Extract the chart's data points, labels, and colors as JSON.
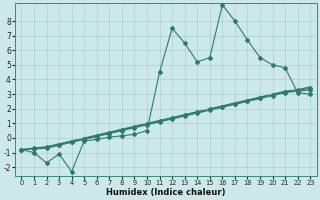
{
  "xlabel": "Humidex (Indice chaleur)",
  "bg_color": "#cce8e8",
  "line_color": "#2d7a6e",
  "grid_color": "#aacfcf",
  "xlim": [
    -0.5,
    23.5
  ],
  "ylim": [
    -2.6,
    9.2
  ],
  "xticks": [
    0,
    1,
    2,
    3,
    4,
    5,
    6,
    7,
    8,
    9,
    10,
    11,
    12,
    13,
    14,
    15,
    16,
    17,
    18,
    19,
    20,
    21,
    22,
    23
  ],
  "yticks": [
    -2,
    -1,
    0,
    1,
    2,
    3,
    4,
    5,
    6,
    7,
    8
  ],
  "series1_x": [
    0,
    1,
    2,
    3,
    4,
    5,
    6,
    7,
    8,
    9,
    10,
    11,
    12,
    13,
    14,
    15,
    16,
    17,
    18,
    19,
    20,
    21,
    22,
    23
  ],
  "series1_y": [
    -0.8,
    -1.0,
    -1.7,
    -1.1,
    -2.3,
    -0.2,
    -0.1,
    0.05,
    0.15,
    0.25,
    0.5,
    4.5,
    7.5,
    6.5,
    5.2,
    5.5,
    9.1,
    8.0,
    6.7,
    5.5,
    5.0,
    4.8,
    3.1,
    3.0
  ],
  "series2_x": [
    0,
    1,
    2,
    3,
    4,
    5,
    6,
    7,
    8,
    9,
    10,
    11,
    12,
    13,
    14,
    15,
    16,
    17,
    18,
    19,
    20,
    21,
    22,
    23
  ],
  "series2_y": [
    -0.8,
    -0.75,
    -0.7,
    -0.5,
    -0.3,
    -0.1,
    0.1,
    0.3,
    0.5,
    0.7,
    0.9,
    1.1,
    1.3,
    1.5,
    1.7,
    1.9,
    2.1,
    2.3,
    2.5,
    2.7,
    2.9,
    3.1,
    3.2,
    3.3
  ],
  "series3_x": [
    0,
    1,
    2,
    3,
    4,
    5,
    6,
    7,
    8,
    9,
    10,
    11,
    12,
    13,
    14,
    15,
    16,
    17,
    18,
    19,
    20,
    21,
    22,
    23
  ],
  "series3_y": [
    -0.8,
    -0.72,
    -0.65,
    -0.45,
    -0.25,
    -0.05,
    0.15,
    0.35,
    0.55,
    0.75,
    0.95,
    1.15,
    1.35,
    1.55,
    1.75,
    1.95,
    2.15,
    2.35,
    2.55,
    2.75,
    2.95,
    3.15,
    3.25,
    3.4
  ],
  "series4_x": [
    0,
    1,
    2,
    3,
    4,
    5,
    6,
    7,
    8,
    9,
    10,
    11,
    12,
    13,
    14,
    15,
    16,
    17,
    18,
    19,
    20,
    21,
    22,
    23
  ],
  "series4_y": [
    -0.8,
    -0.68,
    -0.6,
    -0.4,
    -0.2,
    0.0,
    0.2,
    0.4,
    0.6,
    0.8,
    1.0,
    1.2,
    1.4,
    1.6,
    1.8,
    2.0,
    2.2,
    2.4,
    2.6,
    2.8,
    3.0,
    3.2,
    3.3,
    3.5
  ]
}
